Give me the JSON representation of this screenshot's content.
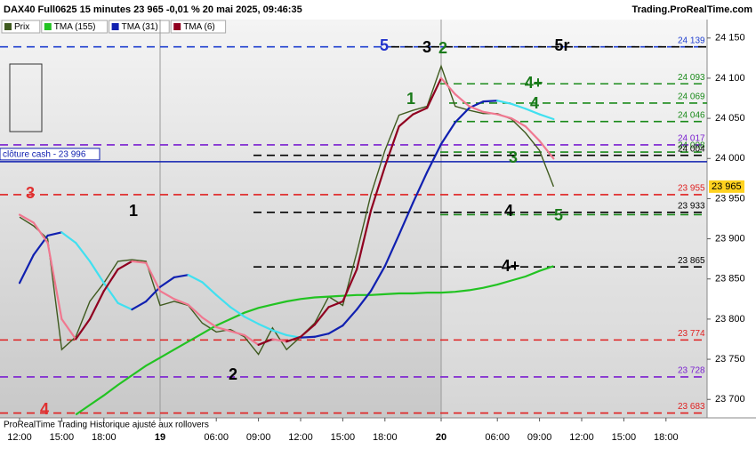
{
  "header": {
    "title": "DAX40 Full0625 15 minutes 23 965 -0,01 % 20 mai 2025, 09:46:35",
    "site": "Trading.ProRealTime.com",
    "footer": "ProRealTime Trading  Historique ajusté aux rollovers"
  },
  "chart_data": {
    "type": "line",
    "categories": [
      "12:00",
      null,
      null,
      "15:00",
      null,
      null,
      "18:00",
      null,
      null,
      null,
      "19",
      null,
      null,
      null,
      "06:00",
      null,
      null,
      "09:00",
      null,
      null,
      "12:00",
      null,
      null,
      "15:00",
      null,
      null,
      "18:00",
      null,
      null,
      null,
      "20",
      null,
      null,
      null,
      "06:00",
      null,
      null,
      "09:00",
      null,
      null,
      "12:00",
      null,
      null,
      "15:00",
      null,
      null,
      "18:00"
    ],
    "bold_categories": [
      "19",
      "20"
    ],
    "series": [
      {
        "name": "Prix",
        "color": "#3f5a1f",
        "values": [
          23927,
          23916,
          23900,
          23762,
          23778,
          23822,
          23845,
          23872,
          23874,
          23872,
          23817,
          23822,
          23817,
          23795,
          23784,
          23787,
          23778,
          23756,
          23789,
          23762,
          23778,
          23795,
          23828,
          23817,
          23883,
          23955,
          24010,
          24054,
          24060,
          24065,
          24115,
          24065,
          24060,
          24056,
          24056,
          24049,
          24032,
          24010,
          23965,
          null,
          null,
          null,
          null,
          null,
          null,
          null,
          null
        ]
      },
      {
        "name": "TMA (155)",
        "color": "#22c322",
        "values": [
          null,
          null,
          null,
          null,
          23681,
          23693,
          23705,
          23718,
          23730,
          23742,
          23752,
          23762,
          23772,
          23782,
          23792,
          23800,
          23808,
          23814,
          23818,
          23822,
          23825,
          23827,
          23828,
          23829,
          23830,
          23830,
          23831,
          23832,
          23832,
          23833,
          23833,
          23834,
          23836,
          23839,
          23843,
          23848,
          23853,
          23860,
          23866,
          null,
          null,
          null,
          null,
          null,
          null,
          null,
          null
        ]
      },
      {
        "name": "TMA (31)",
        "color": "#1020b0",
        "down_color": "#40e0f0",
        "values": [
          23845,
          23880,
          23904,
          23908,
          23895,
          23872,
          23845,
          23820,
          23812,
          23822,
          23840,
          23852,
          23855,
          23846,
          23830,
          23815,
          23803,
          23794,
          23786,
          23780,
          23777,
          23778,
          23782,
          23792,
          23812,
          23835,
          23866,
          23905,
          23945,
          23983,
          24018,
          24045,
          24063,
          24071,
          24072,
          24068,
          24062,
          24055,
          24049,
          null,
          null,
          null,
          null,
          null,
          null,
          null,
          null
        ]
      },
      {
        "name": "TMA (6)",
        "color": "#900020",
        "down_color": "#f07890",
        "values": [
          23930,
          23920,
          23895,
          23800,
          23775,
          23800,
          23835,
          23862,
          23872,
          23870,
          23835,
          23825,
          23818,
          23802,
          23790,
          23785,
          23780,
          23768,
          23775,
          23772,
          23778,
          23793,
          23815,
          23822,
          23862,
          23935,
          23990,
          24040,
          24055,
          24063,
          24100,
          24080,
          24065,
          24058,
          24055,
          24050,
          24040,
          24022,
          24000,
          null,
          null,
          null,
          null,
          null,
          null,
          null,
          null
        ]
      }
    ],
    "ylim": [
      23677,
      24173
    ],
    "yticks": [
      {
        "value": 24150,
        "label": "24 150"
      },
      {
        "value": 24100,
        "label": "24 100"
      },
      {
        "value": 24050,
        "label": "24 050"
      },
      {
        "value": 24000,
        "label": "24 000"
      },
      {
        "value": 23950,
        "label": "23 950"
      },
      {
        "value": 23900,
        "label": "23 900"
      },
      {
        "value": 23850,
        "label": "23 850"
      },
      {
        "value": 23800,
        "label": "23 800"
      },
      {
        "value": 23750,
        "label": "23 750"
      },
      {
        "value": 23700,
        "label": "23 700"
      }
    ],
    "last_price": {
      "value": 23965,
      "label": "23 965",
      "color": "#ffd21f"
    },
    "close_line": {
      "value": 23996,
      "label": "clôture cash -  23 996",
      "color": "#1020b0"
    },
    "levels": [
      {
        "value": 24139,
        "label": "24 139",
        "color": "#1f3fd0"
      },
      {
        "value": 24139,
        "color": "#000000"
      },
      {
        "value": 24093,
        "label": "24 093",
        "color": "#1a8a1a"
      },
      {
        "value": 24069,
        "label": "24 069",
        "color": "#1a8a1a"
      },
      {
        "value": 24046,
        "label": "24 046",
        "color": "#1a8a1a"
      },
      {
        "value": 24017,
        "label": "24 017",
        "color": "#7a1fd0"
      },
      {
        "value": 24008,
        "label": "24 008",
        "color": "#1a8a1a"
      },
      {
        "value": 24004,
        "label": "24 004",
        "color": "#000000"
      },
      {
        "value": 23955,
        "label": "23 955",
        "color": "#e02020"
      },
      {
        "value": 23933,
        "label": "23 933",
        "color": "#000000"
      },
      {
        "value": 23930,
        "color": "#1a8a1a"
      },
      {
        "value": 23865,
        "label": "23 865",
        "color": "#000000"
      },
      {
        "value": 23774,
        "label": "23 774",
        "color": "#e02020"
      },
      {
        "value": 23728,
        "label": "23 728",
        "color": "#7a1fd0"
      },
      {
        "value": 23683,
        "label": "23 683",
        "color": "#e02020"
      }
    ],
    "annotations": [
      {
        "text": "5",
        "color": "#2233cc"
      },
      {
        "text": "3",
        "color": "#000000"
      },
      {
        "text": "2",
        "color": "#1a7a1a"
      },
      {
        "text": "5r",
        "color": "#000000"
      },
      {
        "text": "4+",
        "color": "#1a7a1a"
      },
      {
        "text": "1",
        "color": "#1a7a1a"
      },
      {
        "text": "4",
        "color": "#1a7a1a"
      },
      {
        "text": "3",
        "color": "#1a7a1a"
      },
      {
        "text": "3",
        "color": "#e03030"
      },
      {
        "text": "1",
        "color": "#000000"
      },
      {
        "text": "4",
        "color": "#000000"
      },
      {
        "text": "5",
        "color": "#1a7a1a"
      },
      {
        "text": "4+",
        "color": "#000000"
      },
      {
        "text": "2",
        "color": "#000000"
      },
      {
        "text": "4",
        "color": "#e03030"
      }
    ]
  }
}
